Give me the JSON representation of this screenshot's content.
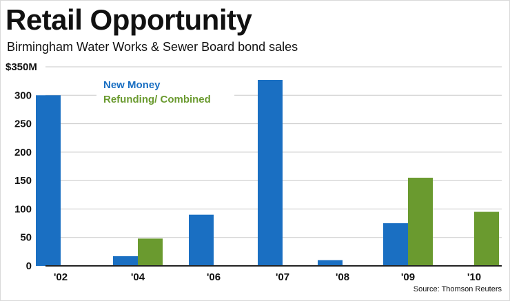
{
  "header": {
    "title": "Retail Opportunity",
    "subtitle": "Birmingham Water Works & Sewer Board bond sales"
  },
  "footer": {
    "source": "Source: Thomson Reuters"
  },
  "colors": {
    "new_money": "#1a6fc2",
    "refunding": "#6a9a2f",
    "grid": "#c8c8c8",
    "axis": "#222222"
  },
  "chart_data": {
    "type": "bar",
    "categories": [
      "'02",
      "'04",
      "'06",
      "'07",
      "'08",
      "'09",
      "'10"
    ],
    "series": [
      {
        "name": "New Money",
        "values": [
          300,
          17,
          90,
          327,
          10,
          75,
          0
        ]
      },
      {
        "name": "Refunding/ Combined",
        "values": [
          0,
          48,
          0,
          0,
          0,
          155,
          95
        ]
      }
    ],
    "y_ticks": [
      "$350M",
      "300",
      "250",
      "200",
      "150",
      "100",
      "50",
      "0"
    ],
    "ylim": [
      0,
      350
    ],
    "ytick_step": 50,
    "grid": true,
    "legend": "top-left",
    "title": "",
    "xlabel": "",
    "ylabel": ""
  }
}
